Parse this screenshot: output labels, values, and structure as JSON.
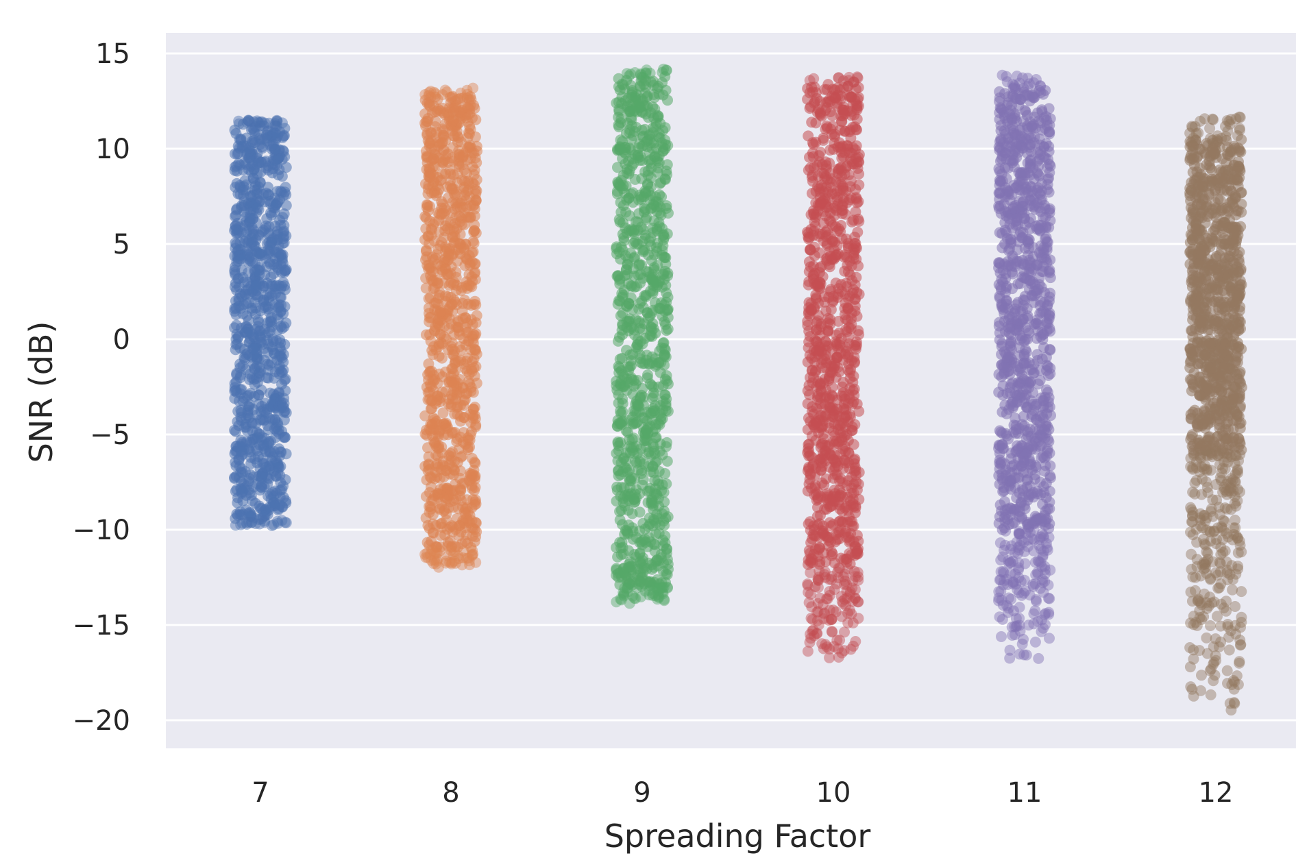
{
  "chart_data": {
    "type": "scatter",
    "subtype": "strip plot (jittered)",
    "title": "",
    "xlabel": "Spreading Factor",
    "ylabel": "SNR (dB)",
    "categories": [
      "7",
      "8",
      "9",
      "10",
      "11",
      "12"
    ],
    "ylim": [
      -21.5,
      16
    ],
    "yticks": [
      15,
      10,
      5,
      0,
      -5,
      -10,
      -15,
      -20
    ],
    "ytick_labels": [
      "15",
      "10",
      "5",
      "0",
      "−5",
      "−10",
      "−15",
      "−20"
    ],
    "grid": true,
    "background": "#eaeaf2",
    "series": [
      {
        "category": "7",
        "color": "#4c72b0",
        "snr_min": -9.8,
        "snr_max": 11.5,
        "dense_min": -9.5,
        "dense_max": 11.3
      },
      {
        "category": "8",
        "color": "#dd8452",
        "snr_min": -12.0,
        "snr_max": 13.2,
        "dense_min": -11.0,
        "dense_max": 12.8
      },
      {
        "category": "9",
        "color": "#55a868",
        "snr_min": -14.0,
        "snr_max": 14.2,
        "dense_min": -13.0,
        "dense_max": 13.8
      },
      {
        "category": "10",
        "color": "#c44e52",
        "snr_min": -16.8,
        "snr_max": 13.8,
        "dense_min": -12.0,
        "dense_max": 13.5
      },
      {
        "category": "11",
        "color": "#8172b3",
        "snr_min": -16.8,
        "snr_max": 14.0,
        "dense_min": -10.0,
        "dense_max": 13.2
      },
      {
        "category": "12",
        "color": "#937860",
        "snr_min": -19.5,
        "snr_max": 11.8,
        "dense_min": -6.0,
        "dense_max": 10.5
      }
    ]
  }
}
